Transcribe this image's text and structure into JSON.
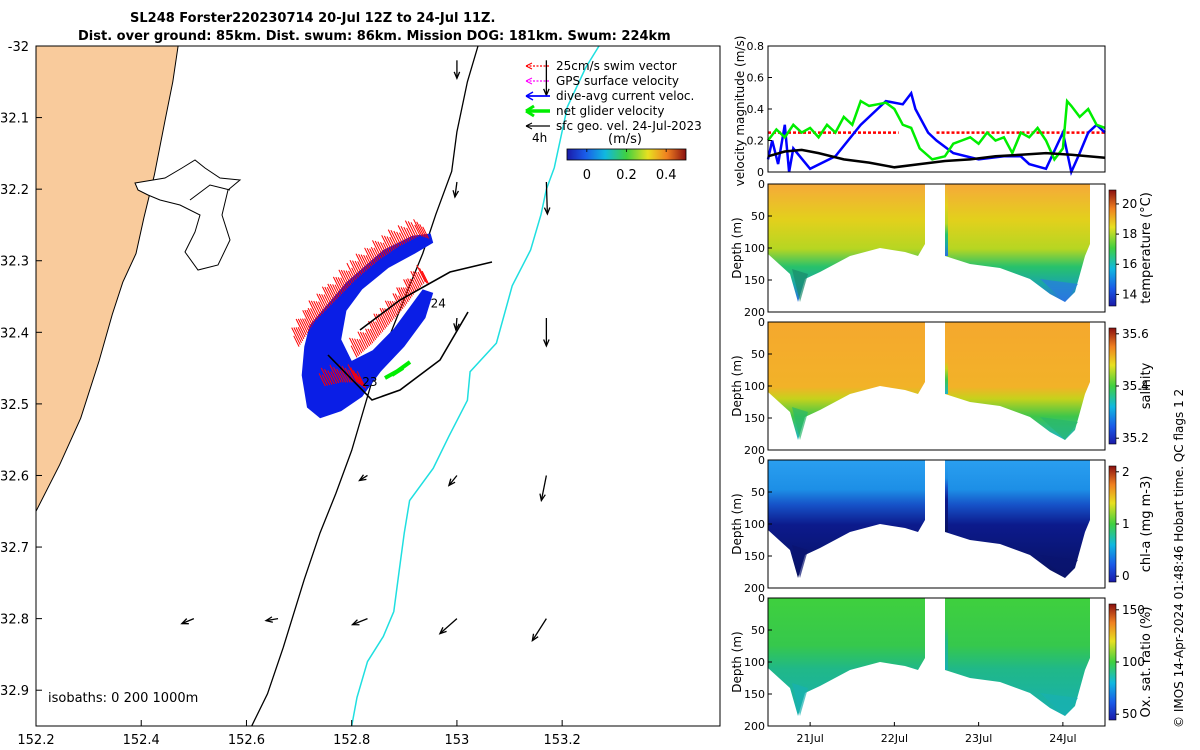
{
  "title": {
    "line1": "SL248 Forster220230714 20-Jul 12Z to 24-Jul 11Z.",
    "line2": "Dist. over ground: 85km. Dist. swum: 86km. Mission DOG: 181km. Swum: 224km"
  },
  "side_label": "© IMOS 14-Apr-2024 01:48:46 Hobart time. QC flags 1  2",
  "colors": {
    "land": "#F9CB9C",
    "swim": "#ff0000",
    "gps": "#ff00ff",
    "dive": "#0000ff",
    "net": "#00ee00",
    "geo": "#000000",
    "isobath": "#00e0e0",
    "track_fill": "#0a1ee6"
  },
  "chart_data": [
    {
      "type": "map",
      "xlim": [
        152.2,
        153.5
      ],
      "ylim": [
        -32.95,
        -32.0
      ],
      "xticks": [
        152.2,
        152.4,
        152.6,
        152.8,
        153,
        153.2
      ],
      "xticklabels": [
        "152.2",
        "152.4",
        "152.6",
        "152.8",
        "153",
        "153.2"
      ],
      "yticks": [
        -32,
        -32.1,
        -32.2,
        -32.3,
        -32.4,
        -32.5,
        -32.6,
        -32.7,
        -32.8,
        -32.9
      ],
      "yticklabels": [
        "-32",
        "32.1",
        "32.2",
        "32.3",
        "32.4",
        "32.5",
        "32.6",
        "32.7",
        "32.8",
        "32.9"
      ],
      "legend": [
        "25cm/s swim vector",
        "GPS surface velocity",
        "dive-avg current veloc.",
        "net glider velocity",
        "sfc geo. vel. 24-Jul-2023"
      ],
      "legend_time": "4h",
      "colorbar": {
        "title": "(m/s)",
        "ticks": [
          0,
          0.2,
          0.4
        ],
        "ticklabels": [
          "0",
          "0.2",
          "0.4"
        ],
        "range": [
          -0.1,
          0.5
        ]
      },
      "day_labels": [
        {
          "text": "23",
          "lon": 152.82,
          "lat": -32.475
        },
        {
          "text": "24",
          "lon": 152.95,
          "lat": -32.365
        }
      ],
      "isobath_label": "isobaths: 0   200  1000m",
      "coast": [
        [
          152.2,
          -32.65
        ],
        [
          152.245,
          -32.585
        ],
        [
          152.285,
          -32.52
        ],
        [
          152.32,
          -32.44
        ],
        [
          152.345,
          -32.375
        ],
        [
          152.365,
          -32.33
        ],
        [
          152.39,
          -32.29
        ],
        [
          152.405,
          -32.24
        ],
        [
          152.425,
          -32.18
        ],
        [
          152.445,
          -32.105
        ],
        [
          152.46,
          -32.05
        ],
        [
          152.47,
          -32.0
        ]
      ],
      "isobath_200": [
        [
          152.61,
          -32.95
        ],
        [
          152.64,
          -32.905
        ],
        [
          152.67,
          -32.84
        ],
        [
          152.71,
          -32.745
        ],
        [
          152.74,
          -32.68
        ],
        [
          152.77,
          -32.625
        ],
        [
          152.8,
          -32.565
        ],
        [
          152.84,
          -32.465
        ],
        [
          152.88,
          -32.39
        ],
        [
          152.91,
          -32.335
        ],
        [
          152.935,
          -32.29
        ],
        [
          152.96,
          -32.235
        ],
        [
          152.99,
          -32.175
        ],
        [
          153.0,
          -32.12
        ],
        [
          153.02,
          -32.05
        ],
        [
          153.04,
          -32.0
        ]
      ],
      "isobath_1000": [
        [
          152.8,
          -32.95
        ],
        [
          152.81,
          -32.91
        ],
        [
          152.83,
          -32.86
        ],
        [
          152.86,
          -32.825
        ],
        [
          152.88,
          -32.79
        ],
        [
          152.89,
          -32.735
        ],
        [
          152.9,
          -32.68
        ],
        [
          152.91,
          -32.635
        ],
        [
          152.955,
          -32.59
        ],
        [
          152.985,
          -32.545
        ],
        [
          153.02,
          -32.495
        ],
        [
          153.025,
          -32.455
        ],
        [
          153.075,
          -32.415
        ],
        [
          153.105,
          -32.335
        ],
        [
          153.14,
          -32.285
        ],
        [
          153.16,
          -32.235
        ],
        [
          153.17,
          -32.2
        ],
        [
          153.185,
          -32.17
        ],
        [
          153.21,
          -32.085
        ],
        [
          153.245,
          -32.03
        ],
        [
          153.27,
          -32.0
        ]
      ],
      "track_outer": [
        [
          152.72,
          -32.39
        ],
        [
          152.79,
          -32.33
        ],
        [
          152.86,
          -32.285
        ],
        [
          152.915,
          -32.265
        ],
        [
          152.95,
          -32.262
        ],
        [
          152.955,
          -32.275
        ],
        [
          152.92,
          -32.29
        ],
        [
          152.87,
          -32.31
        ],
        [
          152.82,
          -32.34
        ],
        [
          152.79,
          -32.37
        ],
        [
          152.78,
          -32.41
        ],
        [
          152.8,
          -32.44
        ],
        [
          152.84,
          -32.425
        ],
        [
          152.88,
          -32.395
        ],
        [
          152.91,
          -32.365
        ],
        [
          152.935,
          -32.34
        ],
        [
          152.955,
          -32.345
        ],
        [
          152.94,
          -32.38
        ],
        [
          152.9,
          -32.42
        ],
        [
          152.855,
          -32.455
        ],
        [
          152.82,
          -32.49
        ],
        [
          152.78,
          -32.51
        ],
        [
          152.74,
          -32.52
        ],
        [
          152.715,
          -32.505
        ],
        [
          152.705,
          -32.46
        ],
        [
          152.71,
          -32.42
        ]
      ],
      "swim_edges": [
        [
          [
            152.7,
            -32.42
          ],
          [
            152.73,
            -32.385
          ],
          [
            152.77,
            -32.355
          ],
          [
            152.81,
            -32.325
          ],
          [
            152.85,
            -32.3
          ],
          [
            152.89,
            -32.28
          ],
          [
            152.93,
            -32.265
          ],
          [
            152.95,
            -32.27
          ]
        ],
        [
          [
            152.81,
            -32.435
          ],
          [
            152.84,
            -32.415
          ],
          [
            152.87,
            -32.39
          ],
          [
            152.9,
            -32.365
          ],
          [
            152.92,
            -32.345
          ],
          [
            152.94,
            -32.33
          ],
          [
            152.95,
            -32.335
          ]
        ],
        [
          [
            152.75,
            -32.475
          ],
          [
            152.78,
            -32.47
          ],
          [
            152.81,
            -32.47
          ],
          [
            152.83,
            -32.48
          ]
        ]
      ],
      "geo_vectors": [
        {
          "lon": 153.0,
          "lat": -32.02,
          "u": 0.0,
          "v": -0.18
        },
        {
          "lon": 153.17,
          "lat": -32.02,
          "u": 0.0,
          "v": -0.35
        },
        {
          "lon": 153.0,
          "lat": -32.19,
          "u": -0.02,
          "v": -0.15
        },
        {
          "lon": 153.17,
          "lat": -32.19,
          "u": 0.01,
          "v": -0.32
        },
        {
          "lon": 153.0,
          "lat": -32.38,
          "u": -0.01,
          "v": -0.12
        },
        {
          "lon": 153.17,
          "lat": -32.38,
          "u": 0.0,
          "v": -0.28
        },
        {
          "lon": 152.83,
          "lat": -32.6,
          "u": -0.08,
          "v": -0.05
        },
        {
          "lon": 153.0,
          "lat": -32.6,
          "u": -0.08,
          "v": -0.1
        },
        {
          "lon": 153.17,
          "lat": -32.6,
          "u": -0.05,
          "v": -0.25
        },
        {
          "lon": 152.5,
          "lat": -32.8,
          "u": -0.12,
          "v": -0.05
        },
        {
          "lon": 152.66,
          "lat": -32.8,
          "u": -0.12,
          "v": -0.02
        },
        {
          "lon": 152.83,
          "lat": -32.8,
          "u": -0.15,
          "v": -0.06
        },
        {
          "lon": 153.0,
          "lat": -32.8,
          "u": -0.17,
          "v": -0.15
        },
        {
          "lon": 153.17,
          "lat": -32.8,
          "u": -0.14,
          "v": -0.22
        }
      ]
    },
    {
      "type": "line",
      "ylabel": "velocity magnitude (m/s)",
      "ylim": [
        0,
        0.8
      ],
      "yticks": [
        0,
        0.2,
        0.4,
        0.6,
        0.8
      ],
      "yticklabels": [
        "0",
        "0.2",
        "0.4",
        "0.6",
        "0.8"
      ],
      "xlim": [
        20.5,
        24.5
      ],
      "series": [
        {
          "name": "25cm/s swim (dashed)",
          "color": "#ff0000",
          "x": [
            20.5,
            22.05,
            22.05,
            22.5,
            22.5,
            24.5
          ],
          "y": [
            0.25,
            0.25,
            null,
            null,
            0.25,
            0.25
          ]
        },
        {
          "name": "dive-avg current",
          "color": "#0000ff",
          "x": [
            20.5,
            20.55,
            20.62,
            20.7,
            20.75,
            20.8,
            21.0,
            21.3,
            21.6,
            21.9,
            22.1,
            22.2,
            22.25,
            22.4,
            22.5,
            22.7,
            23.0,
            23.3,
            23.5,
            23.6,
            23.8,
            24.0,
            24.1,
            24.2,
            24.3,
            24.4,
            24.5
          ],
          "y": [
            0.08,
            0.2,
            0.05,
            0.3,
            0.0,
            0.15,
            0.02,
            0.1,
            0.3,
            0.45,
            0.43,
            0.5,
            0.4,
            0.25,
            0.2,
            0.12,
            0.08,
            0.1,
            0.1,
            0.05,
            0.02,
            0.25,
            0.0,
            0.12,
            0.25,
            0.3,
            0.25
          ]
        },
        {
          "name": "net glider",
          "color": "#00ee00",
          "x": [
            20.5,
            20.6,
            20.7,
            20.8,
            20.9,
            21.0,
            21.1,
            21.2,
            21.3,
            21.4,
            21.5,
            21.6,
            21.7,
            21.8,
            21.9,
            22.0,
            22.1,
            22.2,
            22.3,
            22.45,
            22.6,
            22.7,
            22.8,
            22.9,
            23.0,
            23.1,
            23.2,
            23.3,
            23.4,
            23.5,
            23.6,
            23.7,
            23.8,
            23.9,
            24.0,
            24.05,
            24.1,
            24.2,
            24.3,
            24.4,
            24.5
          ],
          "y": [
            0.2,
            0.27,
            0.22,
            0.3,
            0.25,
            0.28,
            0.22,
            0.3,
            0.25,
            0.35,
            0.3,
            0.45,
            0.42,
            0.43,
            0.44,
            0.4,
            0.3,
            0.28,
            0.15,
            0.08,
            0.1,
            0.18,
            0.2,
            0.22,
            0.18,
            0.25,
            0.2,
            0.22,
            0.12,
            0.25,
            0.22,
            0.28,
            0.2,
            0.08,
            0.15,
            0.45,
            0.42,
            0.35,
            0.4,
            0.3,
            0.28
          ]
        },
        {
          "name": "sfc geo. vel.",
          "color": "#000000",
          "x": [
            20.5,
            20.7,
            20.9,
            21.1,
            21.4,
            21.7,
            22.0,
            22.3,
            22.6,
            22.9,
            23.2,
            23.5,
            23.8,
            24.1,
            24.5
          ],
          "y": [
            0.1,
            0.13,
            0.14,
            0.12,
            0.08,
            0.06,
            0.03,
            0.05,
            0.07,
            0.08,
            0.1,
            0.11,
            0.12,
            0.11,
            0.09
          ]
        }
      ]
    },
    {
      "type": "section",
      "ylabel": "Depth (m)",
      "cblabel": "temperature (°C)",
      "ylim": [
        0,
        200
      ],
      "yticks": [
        0,
        50,
        100,
        150,
        200
      ],
      "yticklabels": [
        "0",
        "50",
        "100",
        "150",
        "200"
      ],
      "cbticks": [
        "14",
        "16",
        "18",
        "20"
      ],
      "layers": [
        "surface",
        "mid",
        "deep"
      ]
    },
    {
      "type": "section",
      "ylabel": "Depth (m)",
      "cblabel": "salinity",
      "ylim": [
        0,
        200
      ],
      "yticks": [
        0,
        50,
        100,
        150,
        200
      ],
      "yticklabels": [
        "0",
        "50",
        "100",
        "150",
        "200"
      ],
      "cbticks": [
        "35.2",
        "35.4",
        "35.6"
      ]
    },
    {
      "type": "section",
      "ylabel": "Depth (m)",
      "cblabel": "chl-a (mg m-3)",
      "ylim": [
        0,
        200
      ],
      "yticks": [
        0,
        50,
        100,
        150,
        200
      ],
      "yticklabels": [
        "0",
        "50",
        "100",
        "150",
        "200"
      ],
      "cbticks": [
        "0",
        "1",
        "2"
      ]
    },
    {
      "type": "section",
      "ylabel": "Depth (m)",
      "cblabel": "Ox. sat. ratio (%)",
      "ylim": [
        0,
        200
      ],
      "yticks": [
        0,
        50,
        100,
        150,
        200
      ],
      "yticklabels": [
        "0",
        "50",
        "100",
        "150",
        "200"
      ],
      "cbticks": [
        "50",
        "100",
        "150"
      ],
      "xticklabels": [
        "21Jul",
        "22Jul",
        "23Jul",
        "24Jul"
      ],
      "xticks": [
        21,
        22,
        23,
        24
      ]
    }
  ]
}
